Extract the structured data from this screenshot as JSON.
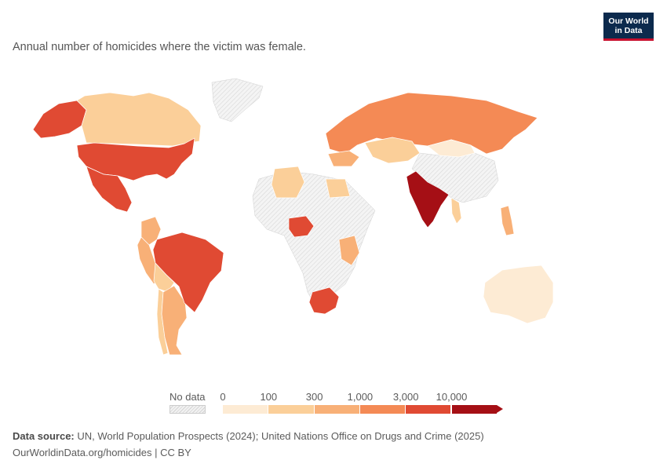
{
  "header": {
    "subtitle": "Annual number of homicides where the victim was female.",
    "logo_line1": "Our World",
    "logo_line2": "in Data"
  },
  "legend": {
    "nodata_label": "No data",
    "ticks": [
      "0",
      "100",
      "300",
      "1,000",
      "3,000",
      "10,000"
    ],
    "bins": [
      {
        "from": "0",
        "to": "100",
        "color": "#fdebd4"
      },
      {
        "from": "100",
        "to": "300",
        "color": "#fbcf99"
      },
      {
        "from": "300",
        "to": "1,000",
        "color": "#f8b077"
      },
      {
        "from": "1,000",
        "to": "3,000",
        "color": "#f48a55"
      },
      {
        "from": "3,000",
        "to": "10,000",
        "color": "#e04a33"
      },
      {
        "from": "10,000",
        "to": "",
        "color": "#a50f15"
      }
    ],
    "nodata_color": "#e6e6e6"
  },
  "footer": {
    "source_label": "Data source:",
    "source_text": " UN, World Population Prospects (2024); United Nations Office on Drugs and Crime (2025)",
    "url_text": "OurWorldinData.org/homicides | CC BY"
  },
  "map_data": {
    "countries": [
      {
        "name": "United States",
        "bin": 4
      },
      {
        "name": "Alaska",
        "bin": 4
      },
      {
        "name": "Canada",
        "bin": 1
      },
      {
        "name": "Mexico",
        "bin": 4
      },
      {
        "name": "Brazil",
        "bin": 4
      },
      {
        "name": "Argentina",
        "bin": 2
      },
      {
        "name": "Colombia",
        "bin": 2
      },
      {
        "name": "Peru",
        "bin": 2
      },
      {
        "name": "Chile",
        "bin": 1
      },
      {
        "name": "Bolivia",
        "bin": 1
      },
      {
        "name": "Russia",
        "bin": 3
      },
      {
        "name": "India",
        "bin": 5
      },
      {
        "name": "Nigeria",
        "bin": 4
      },
      {
        "name": "South Africa",
        "bin": 4
      },
      {
        "name": "Australia",
        "bin": 0
      },
      {
        "name": "Kazakhstan",
        "bin": 1
      },
      {
        "name": "Mongolia",
        "bin": 0
      },
      {
        "name": "Ukraine",
        "bin": 2
      },
      {
        "name": "Egypt",
        "bin": 1
      },
      {
        "name": "Algeria",
        "bin": 1
      },
      {
        "name": "Tanzania",
        "bin": 2
      },
      {
        "name": "Philippines",
        "bin": 2
      },
      {
        "name": "Myanmar",
        "bin": 1
      },
      {
        "name": "Greenland",
        "bin": -1
      },
      {
        "name": "China",
        "bin": -1
      },
      {
        "name": "Africa (other)",
        "bin": -1
      }
    ]
  }
}
